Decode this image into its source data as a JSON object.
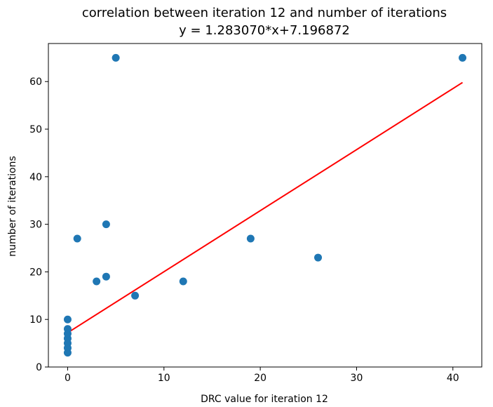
{
  "chart_data": {
    "type": "scatter",
    "title": "correlation between iteration 12 and number of iterations",
    "subtitle": "y = 1.283070*x+7.196872",
    "xlabel": "DRC value for iteration 12",
    "ylabel": "number of iterations",
    "xlim": [
      -2,
      43
    ],
    "ylim": [
      0,
      68
    ],
    "xticks": [
      0,
      10,
      20,
      30,
      40
    ],
    "yticks": [
      0,
      10,
      20,
      30,
      40,
      50,
      60
    ],
    "grid": false,
    "legend": "none",
    "points": [
      {
        "x": 0,
        "y": 3
      },
      {
        "x": 0,
        "y": 4
      },
      {
        "x": 0,
        "y": 5
      },
      {
        "x": 0,
        "y": 6
      },
      {
        "x": 0,
        "y": 7
      },
      {
        "x": 0,
        "y": 8
      },
      {
        "x": 0,
        "y": 10
      },
      {
        "x": 1,
        "y": 27
      },
      {
        "x": 3,
        "y": 18
      },
      {
        "x": 4,
        "y": 19
      },
      {
        "x": 4,
        "y": 30
      },
      {
        "x": 5,
        "y": 65
      },
      {
        "x": 7,
        "y": 15
      },
      {
        "x": 12,
        "y": 18
      },
      {
        "x": 19,
        "y": 27
      },
      {
        "x": 26,
        "y": 23
      },
      {
        "x": 41,
        "y": 65
      }
    ],
    "fit_line": {
      "slope": 1.28307,
      "intercept": 7.196872,
      "x_range": [
        0,
        41
      ]
    },
    "colors": {
      "points": "#1f77b4",
      "fit_line": "#ff0000",
      "axes": "#000000"
    }
  }
}
